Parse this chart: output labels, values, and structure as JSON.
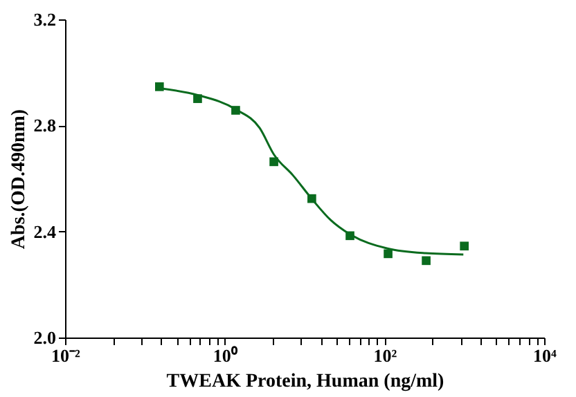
{
  "chart_data": {
    "type": "scatter",
    "xlabel": "TWEAK Protein, Human (ng/ml)",
    "ylabel": "Abs.(OD.490nm)",
    "log": "x",
    "grid": false,
    "xlim": [
      0.01,
      10000
    ],
    "ylim": [
      2.0,
      3.2
    ],
    "xticks": [
      {
        "value": 0.01,
        "label": "10⁻²"
      },
      {
        "value": 0.04,
        "label": null
      },
      {
        "value": 0.09,
        "label": null
      },
      {
        "value": 0.16,
        "label": null
      },
      {
        "value": 0.25,
        "label": null
      },
      {
        "value": 0.36,
        "label": null
      },
      {
        "value": 0.49,
        "label": null
      },
      {
        "value": 0.64,
        "label": null
      },
      {
        "value": 0.81,
        "label": null
      },
      {
        "value": 1,
        "label": "10⁰"
      },
      {
        "value": 4,
        "label": null
      },
      {
        "value": 9,
        "label": null
      },
      {
        "value": 16,
        "label": null
      },
      {
        "value": 25,
        "label": null
      },
      {
        "value": 36,
        "label": null
      },
      {
        "value": 49,
        "label": null
      },
      {
        "value": 64,
        "label": null
      },
      {
        "value": 81,
        "label": null
      },
      {
        "value": 100,
        "label": "10²"
      },
      {
        "value": 400,
        "label": null
      },
      {
        "value": 900,
        "label": null
      },
      {
        "value": 1600,
        "label": null
      },
      {
        "value": 2500,
        "label": null
      },
      {
        "value": 3600,
        "label": null
      },
      {
        "value": 4900,
        "label": null
      },
      {
        "value": 6400,
        "label": null
      },
      {
        "value": 8100,
        "label": null
      },
      {
        "value": 10000,
        "label": "10⁴"
      }
    ],
    "yticks": [
      {
        "value": 2.0,
        "label": "2.0"
      },
      {
        "value": 2.4,
        "label": "2.4"
      },
      {
        "value": 2.8,
        "label": "2.8"
      },
      {
        "value": 3.2,
        "label": "3.2"
      }
    ],
    "series": [
      {
        "type": "scatter",
        "marker": "square",
        "color": "#0a6b1e",
        "x": [
          0.152,
          0.457,
          1.37,
          4.12,
          12.3,
          37,
          111,
          333,
          1000
        ],
        "values": [
          2.946,
          2.901,
          2.857,
          2.663,
          2.524,
          2.384,
          2.316,
          2.29,
          2.345
        ]
      },
      {
        "type": "line",
        "marker": "none",
        "line_style": "solid",
        "color": "#0a6b1e",
        "x": [
          0.156,
          0.465,
          1.38,
          2.74,
          4.13,
          7.13,
          12.3,
          21.2,
          36.6,
          109,
          327,
          973
        ],
        "values": [
          2.94,
          2.914,
          2.86,
          2.79,
          2.69,
          2.612,
          2.523,
          2.443,
          2.39,
          2.336,
          2.318,
          2.313
        ]
      }
    ]
  }
}
